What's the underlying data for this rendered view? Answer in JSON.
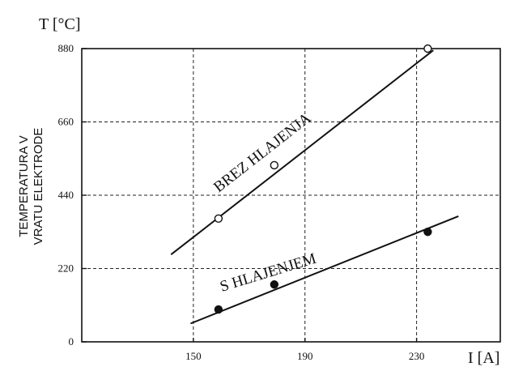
{
  "chart_data": {
    "type": "scatter",
    "title": "",
    "xlabel": "I [A]",
    "ylabel_unit": "T [°C]",
    "ylabel": [
      "TEMPERATURA V",
      "VRATU ELEKTRODE"
    ],
    "xlim": [
      110,
      260
    ],
    "ylim": [
      0,
      880
    ],
    "x_ticks": [
      150,
      190,
      230
    ],
    "x_tick_labels": [
      "150",
      "190",
      "230"
    ],
    "y_ticks": [
      0,
      220,
      440,
      660,
      880
    ],
    "y_tick_labels": [
      "0",
      "220",
      "440",
      "660",
      "880"
    ],
    "grid": true,
    "series": [
      {
        "name": "BREZ HLAJENJA",
        "marker": "open-circle",
        "points": [
          [
            159,
            370
          ],
          [
            179,
            530
          ],
          [
            234,
            880
          ]
        ],
        "fit_line": [
          [
            142,
            262
          ],
          [
            236,
            875
          ]
        ]
      },
      {
        "name": "S HLAJENJEM",
        "marker": "filled-circle",
        "points": [
          [
            159,
            97
          ],
          [
            179,
            172
          ],
          [
            234,
            330
          ]
        ],
        "fit_line": [
          [
            149,
            55
          ],
          [
            245,
            377
          ]
        ]
      }
    ]
  }
}
